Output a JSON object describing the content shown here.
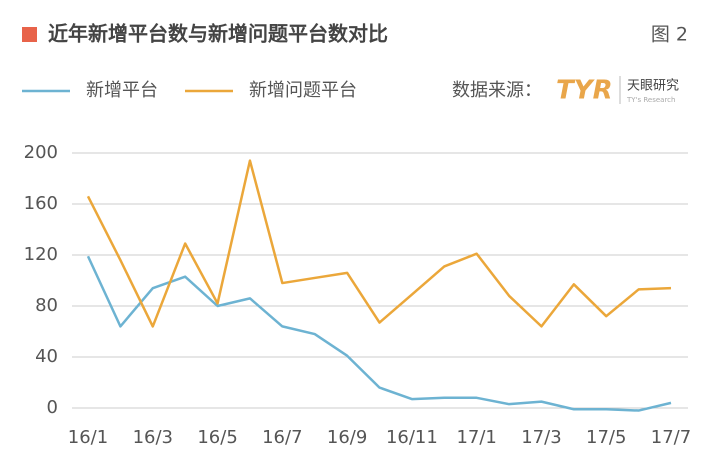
{
  "chart_data": {
    "type": "line",
    "title": "近年新增平台数与新增问题平台数对比",
    "figure_label": "图 2",
    "source": "数据来源：",
    "logo": {
      "mark": "TYR",
      "name": "天眼研究",
      "tagline": "TY's Research"
    },
    "categories": [
      "16/1",
      null,
      "16/3",
      null,
      "16/5",
      null,
      "16/7",
      null,
      "16/9",
      null,
      "16/11",
      null,
      "17/1",
      null,
      "17/3",
      null,
      "17/5",
      null,
      "17/7"
    ],
    "series": [
      {
        "name": "新增平台",
        "color": "#6db3d2",
        "values": [
          119,
          64,
          94,
          103,
          80,
          86,
          64,
          58,
          41,
          16,
          7,
          8,
          8,
          3,
          5,
          -1,
          -1,
          -2,
          4
        ]
      },
      {
        "name": "新增问题平台",
        "color": "#eba73a",
        "values": [
          166,
          116,
          64,
          129,
          82,
          194,
          98,
          102,
          106,
          67,
          89,
          111,
          121,
          88,
          64,
          97,
          72,
          93,
          94
        ]
      }
    ],
    "ylim": [
      0,
      200
    ],
    "yticks": [
      0,
      40,
      80,
      120,
      160,
      200
    ],
    "grid": true
  }
}
